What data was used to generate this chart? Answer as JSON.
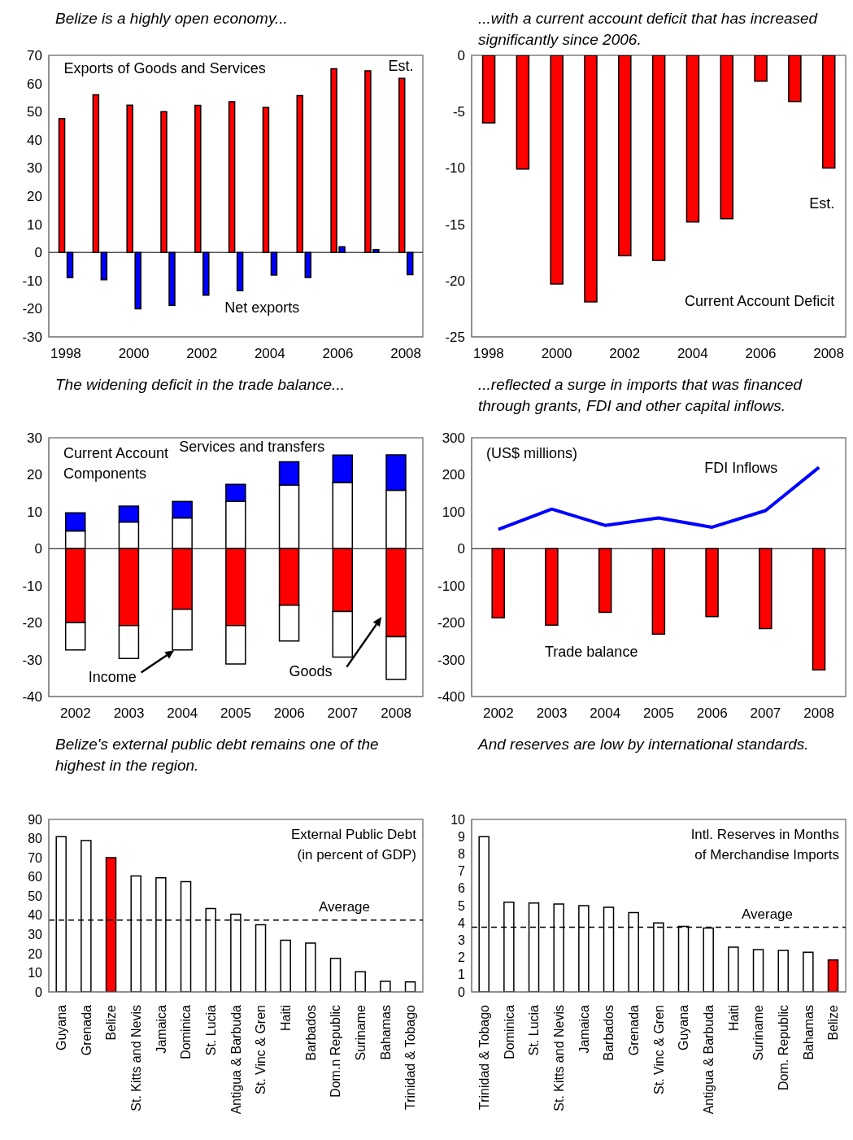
{
  "chart_data": [
    {
      "type": "bar",
      "title": "Belize is a highly open economy...",
      "categories": [
        "1998",
        null,
        "2000",
        null,
        "2002",
        null,
        "2004",
        null,
        "2006",
        null,
        "2008"
      ],
      "series": [
        {
          "color": "#ff0000",
          "values": [
            47.5,
            56,
            52.3,
            50,
            52.2,
            53.5,
            51.5,
            55.7,
            65.2,
            64.5,
            61.8
          ]
        },
        {
          "color": "#0000ff",
          "values": [
            -9,
            -9.7,
            -20,
            -18.8,
            -15.2,
            -13.6,
            -8,
            -8.9,
            2,
            1,
            -7.9
          ]
        }
      ],
      "ylim": [
        -30,
        70
      ],
      "yticks": [
        -30,
        -20,
        -10,
        0,
        10,
        20,
        30,
        40,
        50,
        60,
        70
      ],
      "annotations": [
        "Exports of Goods and Services",
        "Est.",
        "Net exports"
      ]
    },
    {
      "type": "bar",
      "title": "...with a current account deficit that has increased significantly since 2006.",
      "categories": [
        "1998",
        null,
        "2000",
        null,
        "2002",
        null,
        "2004",
        null,
        "2006",
        null,
        "2008"
      ],
      "series": [
        {
          "color": "#ff0000",
          "values": [
            -6,
            -10.1,
            -20.3,
            -21.9,
            -17.8,
            -18.2,
            -14.8,
            -14.5,
            -2.3,
            -4.1,
            -10
          ]
        }
      ],
      "ylim": [
        -25,
        0
      ],
      "yticks": [
        -25,
        -20,
        -15,
        -10,
        -5,
        0
      ],
      "annotations": [
        "Est.",
        "Current Account Deficit"
      ]
    },
    {
      "type": "bar",
      "title": "The widening deficit in the trade balance...",
      "categories": [
        "2002",
        "2003",
        "2004",
        "2005",
        "2006",
        "2007",
        "2008"
      ],
      "stacked": true,
      "series": [
        {
          "color": "#ffffff",
          "values": [
            4.8,
            7.2,
            8.3,
            12.8,
            17.2,
            17.9,
            15.8
          ]
        },
        {
          "color": "#0000ff",
          "values": [
            4.9,
            4.3,
            4.5,
            4.6,
            6.3,
            7.4,
            9.6
          ]
        },
        {
          "color": "#ff0000",
          "values": [
            -20,
            -20.8,
            -16.4,
            -20.8,
            -15.3,
            -17,
            -23.8
          ]
        },
        {
          "color": "#ffffff",
          "values": [
            -7.4,
            -8.9,
            -11,
            -10.4,
            -9.7,
            -12.3,
            -11.6
          ]
        }
      ],
      "ylim": [
        -40,
        30
      ],
      "yticks": [
        -40,
        -30,
        -20,
        -10,
        0,
        10,
        20,
        30
      ],
      "annotations": [
        "Current Account",
        "Components",
        "Services and transfers",
        "Income",
        "Goods"
      ]
    },
    {
      "type": "bar",
      "title": "...reflected a surge in imports that was financed through grants, FDI and other capital inflows.",
      "categories": [
        "2002",
        "2003",
        "2004",
        "2005",
        "2006",
        "2007",
        "2008"
      ],
      "series": [
        {
          "color": "#ff0000",
          "values": [
            -187,
            -207,
            -172,
            -231,
            -184,
            -216,
            -328
          ]
        },
        {
          "type": "line",
          "color": "#0000ff",
          "values": [
            52,
            107,
            63,
            83,
            58,
            103,
            220
          ]
        }
      ],
      "ylim": [
        -400,
        300
      ],
      "yticks": [
        -400,
        -300,
        -200,
        -100,
        0,
        100,
        200,
        300
      ],
      "annotations": [
        "(US$ millions)",
        "FDI Inflows",
        "Trade balance"
      ]
    },
    {
      "type": "bar",
      "title": "Belize's external public debt remains one of the highest in the region.",
      "categories": [
        "Guyana",
        "Grenada",
        "Belize",
        "St. Kitts and Nevis",
        "Jamaica",
        "Dominica",
        "St. Lucia",
        "Antigua & Barbuda",
        "St. Vinc & Gren",
        "Haiti",
        "Barbados",
        "Dom.n Republic",
        "Suriname",
        "Bahamas",
        "Trinidad & Tobago"
      ],
      "series": [
        {
          "colors": [
            "#ffffff",
            "#ffffff",
            "#ff0000",
            "#ffffff",
            "#ffffff",
            "#ffffff",
            "#ffffff",
            "#ffffff",
            "#ffffff",
            "#ffffff",
            "#ffffff",
            "#ffffff",
            "#ffffff",
            "#ffffff",
            "#ffffff"
          ],
          "values": [
            81,
            79,
            70,
            60.5,
            59.5,
            57.5,
            43.5,
            40.5,
            35,
            27,
            25.5,
            17.5,
            10.5,
            5.5,
            5.2
          ]
        }
      ],
      "ylim": [
        0,
        90
      ],
      "yticks": [
        0,
        10,
        20,
        30,
        40,
        50,
        60,
        70,
        80,
        90
      ],
      "ref_lines": [
        {
          "axis": "y",
          "value": 37.5,
          "label": "Average",
          "color": "#000000",
          "line_style": "dashed"
        }
      ],
      "annotations": [
        "External Public Debt",
        "(in percent of GDP)"
      ]
    },
    {
      "type": "bar",
      "title": "And reserves are low by international standards.",
      "categories": [
        "Trinidad & Tobago",
        "Dominica",
        "St. Lucia",
        "St. Kitts and Nevis",
        "Jamaica",
        "Barbados",
        "Grenada",
        "St. Vinc & Gren",
        "Guyana",
        "Antigua & Barbuda",
        "Haiti",
        "Suriname",
        "Dom. Republic",
        "Bahamas",
        "Belize"
      ],
      "series": [
        {
          "colors": [
            "#ffffff",
            "#ffffff",
            "#ffffff",
            "#ffffff",
            "#ffffff",
            "#ffffff",
            "#ffffff",
            "#ffffff",
            "#ffffff",
            "#ffffff",
            "#ffffff",
            "#ffffff",
            "#ffffff",
            "#ffffff",
            "#ff0000"
          ],
          "values": [
            9,
            5.2,
            5.15,
            5.1,
            5,
            4.9,
            4.6,
            4,
            3.8,
            3.7,
            2.6,
            2.45,
            2.4,
            2.3,
            1.85
          ]
        }
      ],
      "ylim": [
        0,
        10
      ],
      "yticks": [
        0,
        1,
        2,
        3,
        4,
        5,
        6,
        7,
        8,
        9,
        10
      ],
      "ref_lines": [
        {
          "axis": "y",
          "value": 3.75,
          "label": "Average",
          "color": "#000000",
          "line_style": "dashed"
        }
      ],
      "annotations": [
        "Intl. Reserves in Months",
        "of Merchandise Imports"
      ]
    }
  ]
}
